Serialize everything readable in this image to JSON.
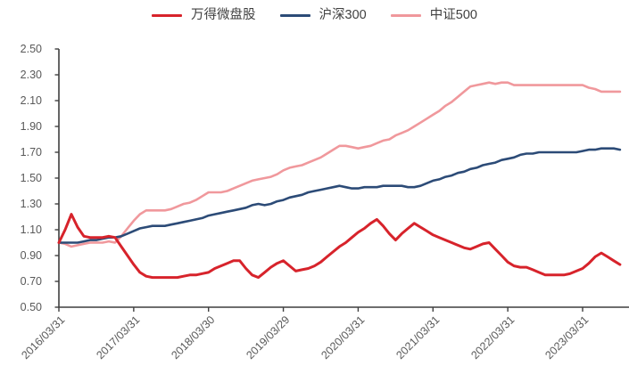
{
  "legend": {
    "items": [
      {
        "label": "万得微盘股",
        "color": "#d7232b"
      },
      {
        "label": "沪深300",
        "color": "#2c4b77"
      },
      {
        "label": "中证500",
        "color": "#f0989c"
      }
    ]
  },
  "axes": {
    "axis_color": "#3f3f3f",
    "tick_label_color": "#595959",
    "y_tick_labels": [
      "2.50",
      "2.30",
      "2.10",
      "1.90",
      "1.70",
      "1.50",
      "1.30",
      "1.10",
      "0.90",
      "0.70",
      "0.50"
    ]
  },
  "chart_data": {
    "type": "line",
    "title": "",
    "xlabel": "",
    "ylabel": "",
    "ylim": [
      0.5,
      2.5
    ],
    "y_ticks": [
      2.5,
      2.3,
      2.1,
      1.9,
      1.7,
      1.5,
      1.3,
      1.1,
      0.9,
      0.7,
      0.5
    ],
    "grid": false,
    "legend_position": "top",
    "x_tick_labels": [
      "2016/03/31",
      "2017/03/31",
      "2018/03/30",
      "2019/03/29",
      "2020/03/31",
      "2021/03/31",
      "2022/03/31",
      "2023/03/31"
    ],
    "x_tick_month_index": [
      0,
      12,
      24,
      36,
      48,
      60,
      72,
      84
    ],
    "x_months": [
      "2016/03",
      "2016/04",
      "2016/05",
      "2016/06",
      "2016/07",
      "2016/08",
      "2016/09",
      "2016/10",
      "2016/11",
      "2016/12",
      "2017/01",
      "2017/02",
      "2017/03",
      "2017/04",
      "2017/05",
      "2017/06",
      "2017/07",
      "2017/08",
      "2017/09",
      "2017/10",
      "2017/11",
      "2017/12",
      "2018/01",
      "2018/02",
      "2018/03",
      "2018/04",
      "2018/05",
      "2018/06",
      "2018/07",
      "2018/08",
      "2018/09",
      "2018/10",
      "2018/11",
      "2018/12",
      "2019/01",
      "2019/02",
      "2019/03",
      "2019/04",
      "2019/05",
      "2019/06",
      "2019/07",
      "2019/08",
      "2019/09",
      "2019/10",
      "2019/11",
      "2019/12",
      "2020/01",
      "2020/02",
      "2020/03",
      "2020/04",
      "2020/05",
      "2020/06",
      "2020/07",
      "2020/08",
      "2020/09",
      "2020/10",
      "2020/11",
      "2020/12",
      "2021/01",
      "2021/02",
      "2021/03",
      "2021/04",
      "2021/05",
      "2021/06",
      "2021/07",
      "2021/08",
      "2021/09",
      "2021/10",
      "2021/11",
      "2021/12",
      "2022/01",
      "2022/02",
      "2022/03",
      "2022/04",
      "2022/05",
      "2022/06",
      "2022/07",
      "2022/08",
      "2022/09",
      "2022/10",
      "2022/11",
      "2022/12",
      "2023/01",
      "2023/02",
      "2023/03",
      "2023/04",
      "2023/05",
      "2023/06",
      "2023/07",
      "2023/08",
      "2023/09"
    ],
    "series": [
      {
        "name": "万得微盘股",
        "color": "#d7232b",
        "values": [
          1.0,
          1.1,
          1.22,
          1.12,
          1.05,
          1.04,
          1.04,
          1.04,
          1.05,
          1.04,
          0.97,
          0.9,
          0.83,
          0.77,
          0.74,
          0.73,
          0.73,
          0.73,
          0.73,
          0.73,
          0.74,
          0.75,
          0.75,
          0.76,
          0.77,
          0.8,
          0.82,
          0.84,
          0.86,
          0.86,
          0.8,
          0.75,
          0.73,
          0.77,
          0.81,
          0.84,
          0.86,
          0.82,
          0.78,
          0.79,
          0.8,
          0.82,
          0.85,
          0.89,
          0.93,
          0.97,
          1.0,
          1.04,
          1.08,
          1.11,
          1.15,
          1.18,
          1.13,
          1.07,
          1.02,
          1.07,
          1.11,
          1.15,
          1.12,
          1.09,
          1.06,
          1.04,
          1.02,
          1.0,
          0.98,
          0.96,
          0.95,
          0.97,
          0.99,
          1.0,
          0.95,
          0.9,
          0.85,
          0.82,
          0.81,
          0.81,
          0.79,
          0.77,
          0.75,
          0.75,
          0.75,
          0.75,
          0.76,
          0.78,
          0.8,
          0.84,
          0.89,
          0.92,
          0.89,
          0.86,
          0.83
        ]
      },
      {
        "name": "沪深300",
        "color": "#2c4b77",
        "values": [
          1.0,
          1.0,
          1.0,
          1.0,
          1.01,
          1.02,
          1.02,
          1.03,
          1.04,
          1.04,
          1.05,
          1.07,
          1.09,
          1.11,
          1.12,
          1.13,
          1.13,
          1.13,
          1.14,
          1.15,
          1.16,
          1.17,
          1.18,
          1.19,
          1.21,
          1.22,
          1.23,
          1.24,
          1.25,
          1.26,
          1.27,
          1.29,
          1.3,
          1.29,
          1.3,
          1.32,
          1.33,
          1.35,
          1.36,
          1.37,
          1.39,
          1.4,
          1.41,
          1.42,
          1.43,
          1.44,
          1.43,
          1.42,
          1.42,
          1.43,
          1.43,
          1.43,
          1.44,
          1.44,
          1.44,
          1.44,
          1.43,
          1.43,
          1.44,
          1.46,
          1.48,
          1.49,
          1.51,
          1.52,
          1.54,
          1.55,
          1.57,
          1.58,
          1.6,
          1.61,
          1.62,
          1.64,
          1.65,
          1.66,
          1.68,
          1.69,
          1.69,
          1.7,
          1.7,
          1.7,
          1.7,
          1.7,
          1.7,
          1.7,
          1.71,
          1.72,
          1.72,
          1.73,
          1.73,
          1.73,
          1.72
        ]
      },
      {
        "name": "中证500",
        "color": "#f0989c",
        "values": [
          1.0,
          0.99,
          0.97,
          0.98,
          0.99,
          1.0,
          1.0,
          1.0,
          1.01,
          1.0,
          1.05,
          1.11,
          1.17,
          1.22,
          1.25,
          1.25,
          1.25,
          1.25,
          1.26,
          1.28,
          1.3,
          1.31,
          1.33,
          1.36,
          1.39,
          1.39,
          1.39,
          1.4,
          1.42,
          1.44,
          1.46,
          1.48,
          1.49,
          1.5,
          1.51,
          1.53,
          1.56,
          1.58,
          1.59,
          1.6,
          1.62,
          1.64,
          1.66,
          1.69,
          1.72,
          1.75,
          1.75,
          1.74,
          1.73,
          1.74,
          1.75,
          1.77,
          1.79,
          1.8,
          1.83,
          1.85,
          1.87,
          1.9,
          1.93,
          1.96,
          1.99,
          2.02,
          2.06,
          2.09,
          2.13,
          2.17,
          2.21,
          2.22,
          2.23,
          2.24,
          2.23,
          2.24,
          2.24,
          2.22,
          2.22,
          2.22,
          2.22,
          2.22,
          2.22,
          2.22,
          2.22,
          2.22,
          2.22,
          2.22,
          2.22,
          2.2,
          2.19,
          2.17,
          2.17,
          2.17,
          2.17
        ]
      }
    ]
  }
}
